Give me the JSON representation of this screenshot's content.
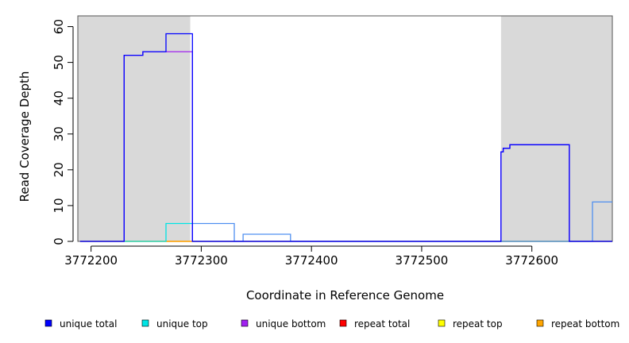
{
  "chart_data": {
    "type": "line",
    "title": "",
    "xlabel": "Coordinate in Reference Genome",
    "ylabel": "Read Coverage Depth",
    "xlim": [
      3772188,
      3772673
    ],
    "ylim": [
      0,
      63
    ],
    "x_ticks": [
      3772200,
      3772300,
      3772400,
      3772500,
      3772600
    ],
    "x_tick_labels": [
      "3772200",
      "3772300",
      "3772400",
      "3772500",
      "3772600"
    ],
    "y_ticks": [
      0,
      10,
      20,
      30,
      40,
      50,
      60
    ],
    "y_tick_labels": [
      "0",
      "10",
      "20",
      "30",
      "40",
      "50",
      "60"
    ],
    "shaded_regions": [
      {
        "x_start": 3772188,
        "x_end": 3772290
      },
      {
        "x_start": 3772572,
        "x_end": 3772673
      }
    ],
    "shade_color": "#d9d9d9",
    "legend_position": "bottom",
    "series": [
      {
        "name": "unique total",
        "color": "#0000ff",
        "points": [
          [
            3772190,
            0
          ],
          [
            3772230,
            0
          ],
          [
            3772230,
            52
          ],
          [
            3772247,
            52
          ],
          [
            3772247,
            53
          ],
          [
            3772268,
            53
          ],
          [
            3772268,
            58
          ],
          [
            3772292,
            58
          ],
          [
            3772292,
            0
          ],
          [
            3772572,
            0
          ],
          [
            3772572,
            25
          ],
          [
            3772574,
            25
          ],
          [
            3772574,
            26
          ],
          [
            3772580,
            26
          ],
          [
            3772580,
            27
          ],
          [
            3772634,
            27
          ],
          [
            3772634,
            0
          ],
          [
            3772673,
            0
          ]
        ]
      },
      {
        "name": "unique top",
        "color": "#00e5e5",
        "points": [
          [
            3772190,
            0
          ],
          [
            3772268,
            0
          ],
          [
            3772268,
            5
          ],
          [
            3772292,
            5
          ],
          [
            3772292,
            0
          ],
          [
            3772673,
            0
          ]
        ]
      },
      {
        "name": "unique bottom",
        "color": "#a020f0",
        "points": [
          [
            3772190,
            0
          ],
          [
            3772230,
            0
          ],
          [
            3772230,
            52
          ],
          [
            3772247,
            52
          ],
          [
            3772247,
            53
          ],
          [
            3772292,
            53
          ],
          [
            3772292,
            0
          ],
          [
            3772572,
            0
          ],
          [
            3772572,
            25
          ],
          [
            3772574,
            25
          ],
          [
            3772574,
            26
          ],
          [
            3772580,
            26
          ],
          [
            3772580,
            27
          ],
          [
            3772634,
            27
          ],
          [
            3772634,
            0
          ],
          [
            3772673,
            0
          ]
        ]
      },
      {
        "name": "repeat total",
        "color": "#ff0000",
        "points": [
          [
            3772190,
            0
          ],
          [
            3772673,
            0
          ]
        ]
      },
      {
        "name": "repeat top",
        "color": "#ffff00",
        "points": [
          [
            3772190,
            0
          ],
          [
            3772673,
            0
          ]
        ]
      },
      {
        "name": "repeat bottom",
        "color": "#ffa500",
        "points": [
          [
            3772190,
            0
          ],
          [
            3772673,
            0
          ]
        ]
      },
      {
        "name": "",
        "color": "#4f8ff0",
        "points": [
          [
            3772292,
            0
          ],
          [
            3772292,
            5
          ],
          [
            3772330,
            5
          ],
          [
            3772330,
            0
          ],
          [
            3772338,
            0
          ],
          [
            3772338,
            2
          ],
          [
            3772381,
            2
          ],
          [
            3772381,
            0
          ],
          [
            3772655,
            0
          ],
          [
            3772655,
            11
          ],
          [
            3772673,
            11
          ]
        ]
      }
    ],
    "legend": [
      {
        "label": "unique total",
        "color": "#0000ff"
      },
      {
        "label": "unique top",
        "color": "#00e5e5"
      },
      {
        "label": "unique bottom",
        "color": "#a020f0"
      },
      {
        "label": "repeat total",
        "color": "#ff0000"
      },
      {
        "label": "repeat top",
        "color": "#ffff00"
      },
      {
        "label": "repeat bottom",
        "color": "#ffa500"
      }
    ]
  }
}
